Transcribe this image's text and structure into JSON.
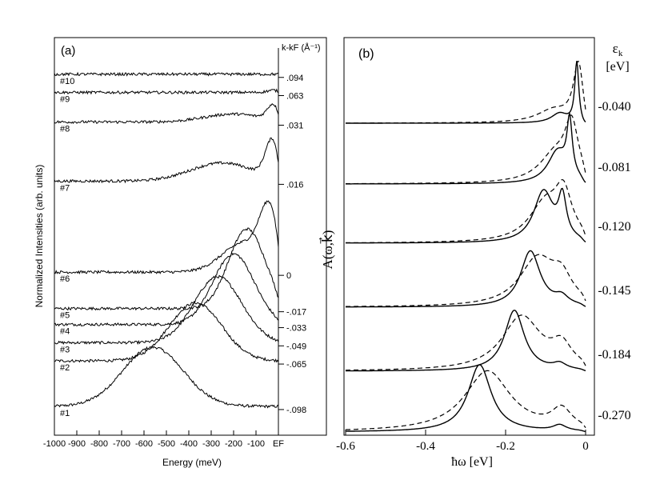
{
  "chart_data": [
    {
      "panel": "(a)",
      "type": "line",
      "title": "",
      "xlabel": "Energy (meV)",
      "ylabel": "Normalized Intensities (arb. units)",
      "right_axis_label": "k-k_F (Å⁻¹)",
      "right_axis_label_display": "k-kF (Å⁻¹)",
      "xlim": [
        -1000,
        40
      ],
      "xticks": [
        -1000,
        -800,
        -600,
        -400,
        -200,
        0
      ],
      "xtick_labels": [
        "-1000",
        "-900",
        "-800",
        "-700",
        "-600",
        "-500",
        "-400",
        "-300",
        "-200",
        "-100",
        "EF"
      ],
      "xtick_positions": [
        -1000,
        -900,
        -800,
        -700,
        -600,
        -500,
        -400,
        -300,
        -200,
        -100,
        0
      ],
      "spectra": [
        {
          "name": "#1",
          "k": "-.098",
          "base": 0.6,
          "peaks": [
            [
              -560,
              2.6,
              190
            ]
          ]
        },
        {
          "name": "#2",
          "k": "-.065",
          "base": 2.6,
          "peaks": [
            [
              -370,
              2.55,
              165
            ]
          ]
        },
        {
          "name": "#3",
          "k": "-.049",
          "base": 3.4,
          "peaks": [
            [
              -270,
              2.9,
              150
            ]
          ]
        },
        {
          "name": "#4",
          "k": "-.033",
          "base": 4.2,
          "peaks": [
            [
              -200,
              3.1,
              130
            ]
          ]
        },
        {
          "name": "#5",
          "k": "-.017",
          "base": 4.9,
          "peaks": [
            [
              -140,
              3.5,
              115
            ]
          ]
        },
        {
          "name": "#6",
          "k": "0",
          "base": 6.5,
          "peaks": [
            [
              -40,
              2.4,
              60
            ],
            [
              -150,
              1.3,
              140
            ]
          ]
        },
        {
          "name": "#7",
          "k": ".016",
          "base": 10.5,
          "peaks": [
            [
              -25,
              1.7,
              45
            ],
            [
              -250,
              0.8,
              200
            ]
          ]
        },
        {
          "name": "#8",
          "k": ".031",
          "base": 13.1,
          "peaks": [
            [
              -20,
              0.7,
              40
            ],
            [
              -200,
              0.35,
              180
            ]
          ]
        },
        {
          "name": "#9",
          "k": ".063",
          "base": 14.4,
          "peaks": [
            [
              -20,
              0.1,
              40
            ]
          ]
        },
        {
          "name": "#10",
          "k": ".094",
          "base": 15.2,
          "peaks": []
        }
      ]
    },
    {
      "panel": "(b)",
      "type": "line",
      "xlabel": "ħω [eV]",
      "ylabel": "A(ω,k⃗)",
      "right_axis_label": "ε_k [eV]",
      "right_axis_symbol": "ε",
      "right_axis_subscript": "k",
      "right_axis_unit": "[eV]",
      "xlim": [
        -0.6,
        0.02
      ],
      "xticks": [
        -0.6,
        -0.4,
        -0.2,
        0
      ],
      "xtick_labels": [
        "-0.6",
        "-0.4",
        "-0.2",
        "0"
      ],
      "series_styles": [
        {
          "name": "solid",
          "dash": "none"
        },
        {
          "name": "dashed",
          "dash": "6 4"
        }
      ],
      "curves": [
        {
          "epsilon": "-0.270",
          "solid_peaks": [
            [
              -0.265,
              2.1,
              0.035
            ],
            [
              -0.065,
              0.18,
              0.02
            ]
          ],
          "dashed_peaks": [
            [
              -0.245,
              1.9,
              0.07
            ],
            [
              -0.06,
              0.6,
              0.03
            ]
          ]
        },
        {
          "epsilon": "-0.184",
          "solid_peaks": [
            [
              -0.178,
              1.9,
              0.03
            ],
            [
              -0.065,
              0.18,
              0.02
            ]
          ],
          "dashed_peaks": [
            [
              -0.16,
              1.7,
              0.06
            ],
            [
              -0.06,
              0.65,
              0.03
            ]
          ]
        },
        {
          "epsilon": "-0.145",
          "solid_peaks": [
            [
              -0.138,
              1.75,
              0.03
            ],
            [
              -0.06,
              0.25,
              0.02
            ]
          ],
          "dashed_peaks": [
            [
              -0.12,
              1.5,
              0.055
            ],
            [
              -0.06,
              0.7,
              0.03
            ]
          ]
        },
        {
          "epsilon": "-0.120",
          "solid_peaks": [
            [
              -0.105,
              1.6,
              0.03
            ],
            [
              -0.058,
              1.25,
              0.012
            ]
          ],
          "dashed_peaks": [
            [
              -0.1,
              1.2,
              0.05
            ],
            [
              -0.055,
              1.3,
              0.025
            ]
          ]
        },
        {
          "epsilon": "-0.081",
          "solid_peaks": [
            [
              -0.07,
              1.0,
              0.03
            ],
            [
              -0.04,
              1.7,
              0.008
            ]
          ],
          "dashed_peaks": [
            [
              -0.075,
              0.9,
              0.05
            ],
            [
              -0.035,
              1.6,
              0.02
            ]
          ]
        },
        {
          "epsilon": "-0.040",
          "solid_peaks": [
            [
              -0.065,
              0.3,
              0.025
            ],
            [
              -0.022,
              1.9,
              0.006
            ]
          ],
          "dashed_peaks": [
            [
              -0.08,
              0.4,
              0.05
            ],
            [
              -0.018,
              1.8,
              0.015
            ]
          ]
        }
      ]
    }
  ]
}
